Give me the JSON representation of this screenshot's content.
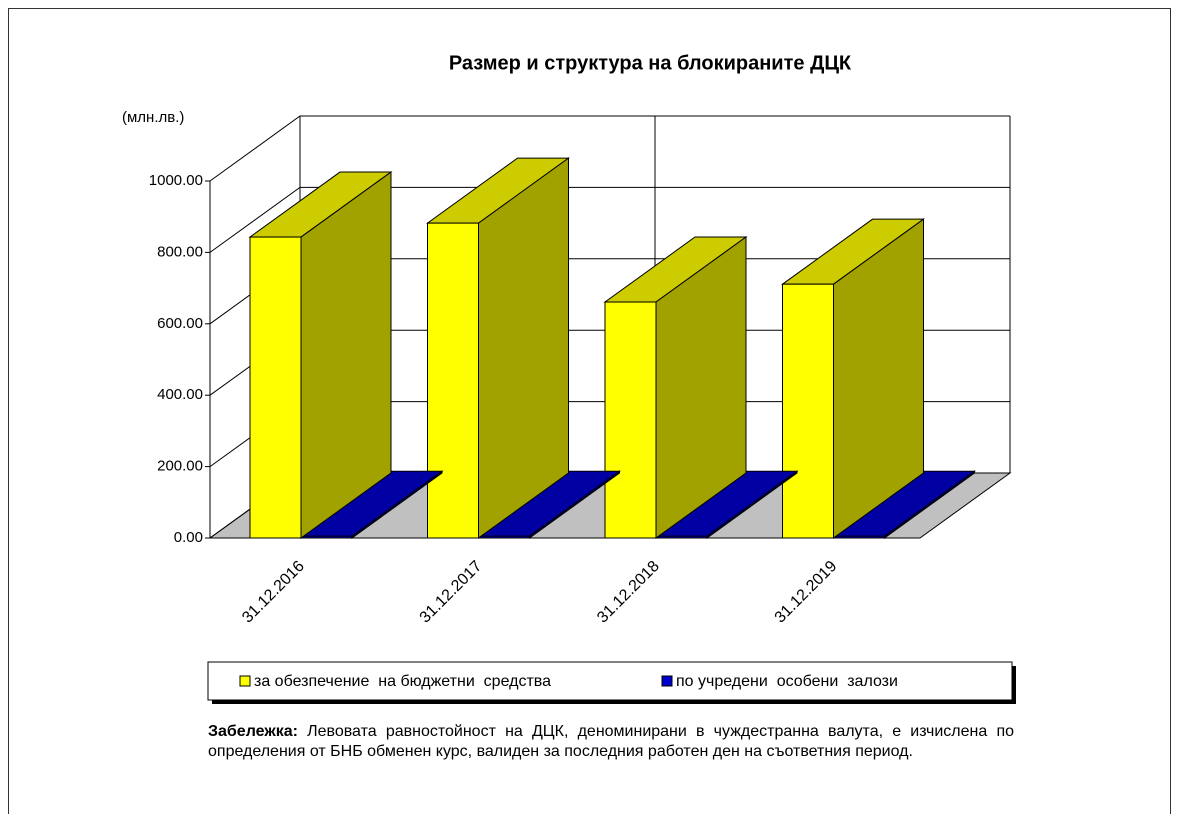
{
  "chart_data": {
    "type": "bar3d",
    "title": "Размер и структура на блокираните ДЦК",
    "y_label": "(млн.лв.)",
    "categories": [
      "31.12.2016",
      "31.12.2017",
      "31.12.2018",
      "31.12.2019"
    ],
    "series": [
      {
        "name": "за обезпечение  на бюджетни  средства",
        "color": "#ffff00",
        "values": [
          843,
          882,
          661,
          711
        ]
      },
      {
        "name": "по учредени  особени  залози",
        "color": "#0000cc",
        "values": [
          5,
          5,
          5,
          5
        ]
      }
    ],
    "ylim": [
      0,
      1000
    ],
    "yticks": [
      {
        "value": 0,
        "label": "0.00"
      },
      {
        "value": 200,
        "label": "200.00"
      },
      {
        "value": 400,
        "label": "400.00"
      },
      {
        "value": 600,
        "label": "600.00"
      },
      {
        "value": 800,
        "label": "800.00"
      },
      {
        "value": 1000,
        "label": "1000.00"
      }
    ],
    "grid": true
  },
  "note": {
    "label": "Забележка:",
    "text": "Левовата равностойност на ДЦК, деноминирани в чуждестранна валута, е изчислена по определения от БНБ обменен курс, валиден за последния работен ден на съответния период."
  }
}
